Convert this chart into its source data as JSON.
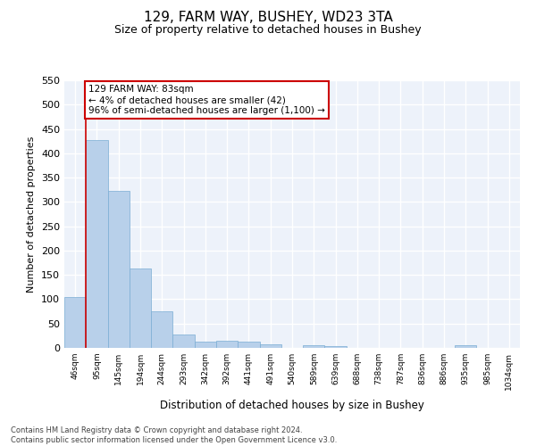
{
  "title1": "129, FARM WAY, BUSHEY, WD23 3TA",
  "title2": "Size of property relative to detached houses in Bushey",
  "xlabel": "Distribution of detached houses by size in Bushey",
  "ylabel": "Number of detached properties",
  "bar_values": [
    104,
    427,
    322,
    164,
    76,
    27,
    12,
    14,
    13,
    8,
    0,
    5,
    4,
    0,
    0,
    0,
    0,
    0,
    5,
    0,
    0
  ],
  "all_labels": [
    "46sqm",
    "95sqm",
    "145sqm",
    "194sqm",
    "244sqm",
    "293sqm",
    "342sqm",
    "392sqm",
    "441sqm",
    "491sqm",
    "540sqm",
    "589sqm",
    "639sqm",
    "688sqm",
    "738sqm",
    "787sqm",
    "836sqm",
    "886sqm",
    "935sqm",
    "985sqm",
    "1034sqm"
  ],
  "bar_color": "#b8d0ea",
  "bar_edge_color": "#7aadd4",
  "annotation_text": "129 FARM WAY: 83sqm\n← 4% of detached houses are smaller (42)\n96% of semi-detached houses are larger (1,100) →",
  "annotation_box_facecolor": "#ffffff",
  "annotation_border_color": "#cc0000",
  "ylim": [
    0,
    550
  ],
  "yticks": [
    0,
    50,
    100,
    150,
    200,
    250,
    300,
    350,
    400,
    450,
    500,
    550
  ],
  "footer_text": "Contains HM Land Registry data © Crown copyright and database right 2024.\nContains public sector information licensed under the Open Government Licence v3.0.",
  "bg_color": "#edf2fa",
  "property_line_color": "#cc0000",
  "property_line_x": 0.5
}
